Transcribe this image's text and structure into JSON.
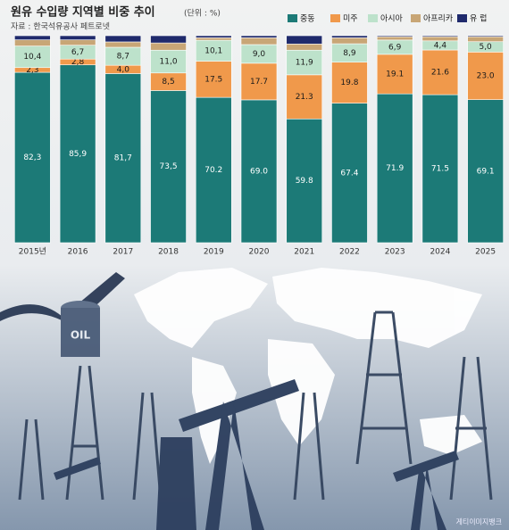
{
  "chart_data": {
    "type": "stacked-bar",
    "title": "원유 수입량 지역별 비중 추이",
    "subtitle": "(단위 : %)",
    "source": "자료 : 한국석유공사 페트로넷",
    "credit": "게티이미지뱅크",
    "categories": [
      "2015년",
      "2016",
      "2017",
      "2018",
      "2019",
      "2020",
      "2021",
      "2022",
      "2023",
      "2024",
      "2025"
    ],
    "ylim": [
      0,
      100
    ],
    "series": [
      {
        "name": "중동",
        "color": "#1c7a77",
        "values": [
          82.3,
          85.9,
          81.7,
          73.5,
          70.2,
          69.0,
          59.8,
          67.4,
          71.9,
          71.5,
          69.1
        ],
        "value_labels": [
          "82,3",
          "85,9",
          "81,7",
          "73,5",
          "70.2",
          "69.0",
          "59.8",
          "67.4",
          "71.9",
          "71.5",
          "69.1"
        ]
      },
      {
        "name": "미주",
        "color": "#f0994b",
        "values": [
          2.3,
          2.8,
          4.0,
          8.5,
          17.5,
          17.7,
          21.3,
          19.8,
          19.1,
          21.6,
          23.0
        ],
        "value_labels": [
          "2,3",
          "2,8",
          "4,0",
          "8,5",
          "17.5",
          "17.7",
          "21.3",
          "19.8",
          "19.1",
          "21.6",
          "23.0"
        ]
      },
      {
        "name": "아시아",
        "color": "#bde2cb",
        "values": [
          10.4,
          6.7,
          8.7,
          11.0,
          10.1,
          9.0,
          11.9,
          8.9,
          6.9,
          4.4,
          5.0
        ],
        "value_labels": [
          "10,4",
          "6,7",
          "8,7",
          "11,0",
          "10,1",
          "9,0",
          "11,9",
          "8,9",
          "6,9",
          "4,4",
          "5,0"
        ]
      },
      {
        "name": "아프리카",
        "color": "#c8a676",
        "values": [
          3.0,
          2.6,
          2.6,
          3.5,
          1.2,
          3.3,
          3.0,
          2.9,
          1.6,
          2.0,
          2.4
        ]
      },
      {
        "name": "유 럽",
        "color": "#1f2a6c",
        "values": [
          2.0,
          2.0,
          3.0,
          3.5,
          1.0,
          1.0,
          4.0,
          1.0,
          0.5,
          0.5,
          0.5
        ]
      }
    ]
  }
}
